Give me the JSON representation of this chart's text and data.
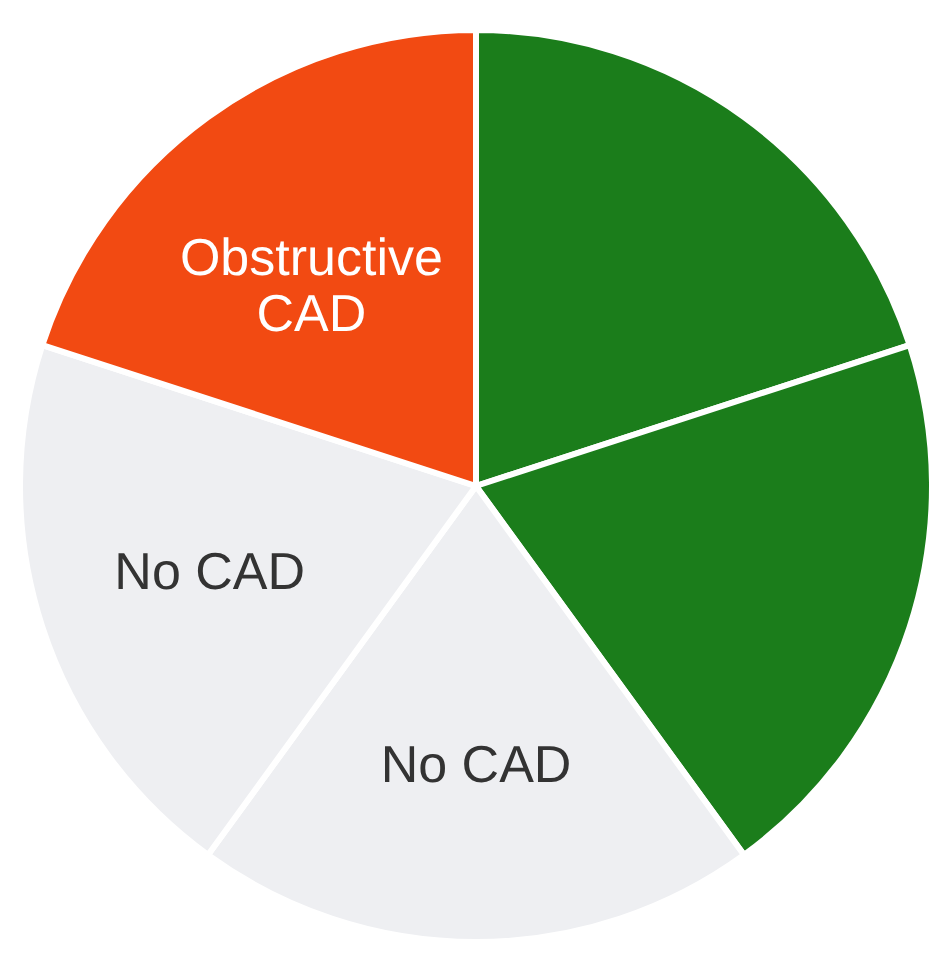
{
  "chart_data": {
    "type": "pie",
    "categories": [
      null,
      null,
      "No CAD",
      "No CAD",
      "Obstructive\nCAD"
    ],
    "values": [
      20,
      20,
      20,
      20,
      20
    ],
    "colors": [
      "#1b7d1b",
      "#1b7d1b",
      "#eeeff2",
      "#eeeff2",
      "#f24a12"
    ],
    "legend": false
  }
}
